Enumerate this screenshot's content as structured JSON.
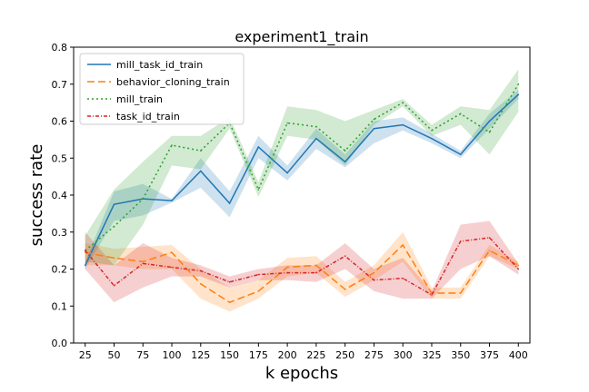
{
  "chart_data": {
    "type": "line",
    "title": "experiment1_train",
    "xlabel": "k epochs",
    "ylabel": "success rate",
    "x": [
      25,
      50,
      75,
      100,
      125,
      150,
      175,
      200,
      225,
      250,
      275,
      300,
      325,
      350,
      375,
      400
    ],
    "xlim": [
      15,
      410
    ],
    "ylim": [
      0,
      0.8
    ],
    "yticks": [
      0.0,
      0.1,
      0.2,
      0.3,
      0.4,
      0.5,
      0.6,
      0.7,
      0.8
    ],
    "grid": false,
    "legend_position": "top-left",
    "series": [
      {
        "name": "mill_task_id_train",
        "color": "#1f77b4",
        "dash": "solid",
        "values": [
          0.21,
          0.375,
          0.39,
          0.385,
          0.465,
          0.378,
          0.53,
          0.46,
          0.553,
          0.49,
          0.58,
          0.59,
          0.553,
          0.51,
          0.6,
          0.672
        ],
        "lower": [
          0.2,
          0.33,
          0.345,
          0.38,
          0.42,
          0.34,
          0.5,
          0.44,
          0.525,
          0.475,
          0.54,
          0.575,
          0.54,
          0.5,
          0.58,
          0.66
        ],
        "upper": [
          0.22,
          0.41,
          0.43,
          0.39,
          0.5,
          0.41,
          0.56,
          0.48,
          0.58,
          0.51,
          0.6,
          0.61,
          0.566,
          0.52,
          0.62,
          0.685
        ]
      },
      {
        "name": "behavior_cloning_train",
        "color": "#ff7f0e",
        "dash": "8,4",
        "values": [
          0.245,
          0.23,
          0.22,
          0.245,
          0.16,
          0.11,
          0.14,
          0.205,
          0.21,
          0.145,
          0.19,
          0.265,
          0.135,
          0.135,
          0.25,
          0.21
        ],
        "lower": [
          0.21,
          0.21,
          0.2,
          0.2,
          0.12,
          0.085,
          0.12,
          0.18,
          0.19,
          0.125,
          0.17,
          0.22,
          0.12,
          0.12,
          0.235,
          0.2
        ],
        "upper": [
          0.27,
          0.255,
          0.26,
          0.265,
          0.2,
          0.15,
          0.17,
          0.23,
          0.235,
          0.165,
          0.21,
          0.3,
          0.15,
          0.15,
          0.265,
          0.22
        ]
      },
      {
        "name": "mill_train",
        "color": "#2ca02c",
        "dash": "2,3",
        "values": [
          0.25,
          0.315,
          0.39,
          0.535,
          0.52,
          0.595,
          0.415,
          0.595,
          0.585,
          0.52,
          0.605,
          0.65,
          0.575,
          0.62,
          0.57,
          0.7
        ],
        "lower": [
          0.22,
          0.21,
          0.32,
          0.48,
          0.47,
          0.58,
          0.395,
          0.56,
          0.55,
          0.48,
          0.59,
          0.64,
          0.56,
          0.59,
          0.51,
          0.625
        ],
        "upper": [
          0.29,
          0.415,
          0.49,
          0.56,
          0.56,
          0.61,
          0.435,
          0.64,
          0.63,
          0.6,
          0.63,
          0.66,
          0.59,
          0.64,
          0.63,
          0.74
        ]
      },
      {
        "name": "task_id_train",
        "color": "#d62728",
        "dash": "4,2,1,2",
        "values": [
          0.25,
          0.155,
          0.215,
          0.205,
          0.195,
          0.165,
          0.185,
          0.19,
          0.19,
          0.235,
          0.17,
          0.175,
          0.13,
          0.275,
          0.285,
          0.2
        ],
        "lower": [
          0.2,
          0.11,
          0.15,
          0.18,
          0.18,
          0.15,
          0.17,
          0.17,
          0.165,
          0.2,
          0.14,
          0.12,
          0.12,
          0.2,
          0.235,
          0.185
        ],
        "upper": [
          0.3,
          0.21,
          0.27,
          0.23,
          0.21,
          0.18,
          0.2,
          0.21,
          0.21,
          0.27,
          0.2,
          0.23,
          0.14,
          0.32,
          0.33,
          0.215
        ]
      }
    ]
  }
}
